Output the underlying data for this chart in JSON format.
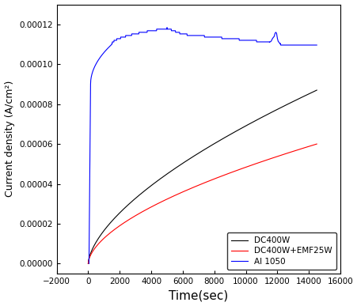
{
  "title": "",
  "xlabel": "Time(sec)",
  "ylabel": "Current density (A/cm²)",
  "xlim": [
    -2000,
    16000
  ],
  "ylim": [
    -5e-06,
    0.00013
  ],
  "xticks": [
    -2000,
    0,
    2000,
    4000,
    6000,
    8000,
    10000,
    12000,
    14000,
    16000
  ],
  "yticks": [
    0.0,
    2e-05,
    4e-05,
    6e-05,
    8e-05,
    0.0001,
    0.00012
  ],
  "legend_labels": [
    "DC400W",
    "DC400W+EMF25W",
    "Al 1050"
  ],
  "legend_colors": [
    "black",
    "red",
    "blue"
  ],
  "bg_color": "white"
}
